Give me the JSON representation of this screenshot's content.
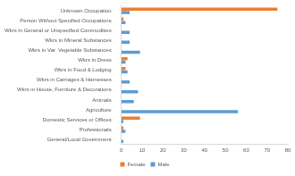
{
  "chart_data": {
    "type": "bar",
    "orientation": "horizontal",
    "categories": [
      "Unknown Occupation",
      "Person Without Specified Occupations",
      "Wkrs in General or Unspecified Commodities",
      "Wkrs in Mineral Substances",
      "Wkrs in Var. Vegetable Substances",
      "Wkrs in Dress",
      "Wkrs in Food & Lodging",
      "Wkrs in Carriages & Harnesses",
      "Wkrs in House, Furniture & Decorations",
      "Animals",
      "Agriculture",
      "Domestic Services or Offices",
      "Professionals",
      "General/Local Government"
    ],
    "series": [
      {
        "name": "Female",
        "color": "#ed7d31",
        "values": [
          75,
          1,
          0,
          0,
          0,
          3,
          2,
          0,
          0,
          0,
          0,
          9,
          1,
          0
        ]
      },
      {
        "name": "Male",
        "color": "#5b9bd5",
        "values": [
          4,
          2,
          4,
          4,
          9,
          2,
          3,
          4,
          8,
          6,
          56,
          1,
          2,
          1
        ]
      }
    ],
    "xlim": [
      0,
      80
    ],
    "xticks": [
      0,
      10,
      20,
      30,
      40,
      50,
      60,
      70,
      80
    ],
    "grid": false,
    "legend": "bottom"
  }
}
